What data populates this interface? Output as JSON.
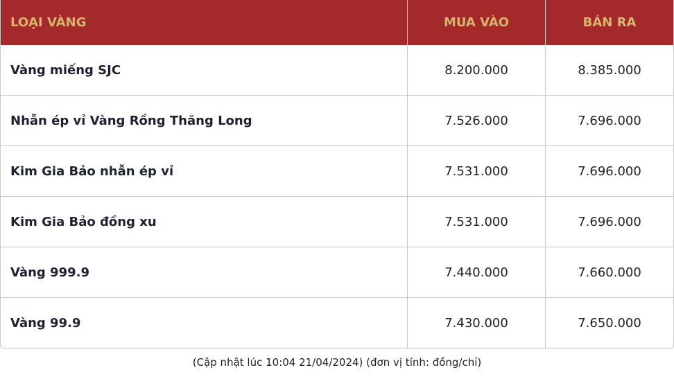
{
  "table": {
    "headers": [
      "LOẠI VÀNG",
      "MUA VÀO",
      "BÁN RA"
    ],
    "rows": [
      {
        "name": "Vàng miếng SJC",
        "buy": "8.200.000",
        "sell": "8.385.000"
      },
      {
        "name": "Nhẫn ép vỉ Vàng Rồng Thăng Long",
        "buy": "7.526.000",
        "sell": "7.696.000"
      },
      {
        "name": "Kim Gia Bảo nhẫn ép vỉ",
        "buy": "7.531.000",
        "sell": "7.696.000"
      },
      {
        "name": "Kim Gia Bảo đồng xu",
        "buy": "7.531.000",
        "sell": "7.696.000"
      },
      {
        "name": "Vàng 999.9",
        "buy": "7.440.000",
        "sell": "7.660.000"
      },
      {
        "name": "Vàng 99.9",
        "buy": "7.430.000",
        "sell": "7.650.000"
      }
    ]
  },
  "note": "(Cập nhật lúc 10:04 21/04/2024) (đơn vị tính: đồng/chỉ)",
  "colors": {
    "header_bg": "#a3292a",
    "header_text": "#d6b66d"
  }
}
